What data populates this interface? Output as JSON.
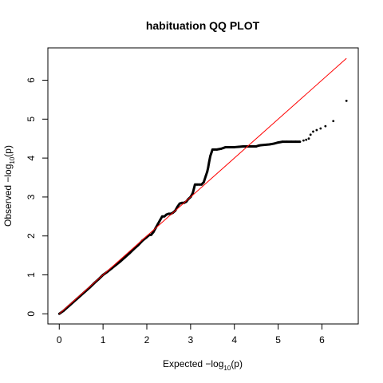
{
  "chart_data": {
    "type": "scatter",
    "title": "habituation QQ PLOT",
    "xlabel": {
      "prefix": "Expected  −log",
      "sub": "10",
      "suffix": "(p)"
    },
    "ylabel": {
      "prefix": "Observed  −log",
      "sub": "10",
      "suffix": "(p)"
    },
    "xlim": [
      -0.26,
      6.83
    ],
    "ylim": [
      -0.26,
      6.83
    ],
    "x_ticks": [
      0,
      1,
      2,
      3,
      4,
      5,
      6
    ],
    "y_ticks": [
      0,
      1,
      2,
      3,
      4,
      5,
      6
    ],
    "reference_line": {
      "from": [
        0,
        0
      ],
      "to": [
        6.56,
        6.56
      ],
      "color": "#ff0000"
    },
    "point_color": "#000000",
    "series": [
      {
        "values": [
          [
            0.0,
            0.0
          ],
          [
            0.1,
            0.08
          ],
          [
            0.2,
            0.18
          ],
          [
            0.3,
            0.28
          ],
          [
            0.4,
            0.38
          ],
          [
            0.5,
            0.48
          ],
          [
            0.6,
            0.58
          ],
          [
            0.7,
            0.68
          ],
          [
            0.8,
            0.79
          ],
          [
            0.9,
            0.89
          ],
          [
            1.0,
            1.0
          ],
          [
            1.1,
            1.08
          ],
          [
            1.2,
            1.17
          ],
          [
            1.3,
            1.26
          ],
          [
            1.4,
            1.35
          ],
          [
            1.5,
            1.45
          ],
          [
            1.6,
            1.55
          ],
          [
            1.7,
            1.66
          ],
          [
            1.8,
            1.76
          ],
          [
            1.9,
            1.88
          ],
          [
            2.0,
            1.97
          ],
          [
            2.05,
            2.02
          ],
          [
            2.1,
            2.03
          ],
          [
            2.15,
            2.1
          ],
          [
            2.2,
            2.2
          ],
          [
            2.25,
            2.3
          ],
          [
            2.3,
            2.4
          ],
          [
            2.35,
            2.5
          ],
          [
            2.4,
            2.5
          ],
          [
            2.45,
            2.55
          ],
          [
            2.5,
            2.57
          ],
          [
            2.55,
            2.57
          ],
          [
            2.6,
            2.6
          ],
          [
            2.65,
            2.65
          ],
          [
            2.7,
            2.75
          ],
          [
            2.75,
            2.83
          ],
          [
            2.8,
            2.85
          ],
          [
            2.85,
            2.85
          ],
          [
            2.9,
            2.88
          ],
          [
            2.95,
            2.95
          ],
          [
            3.0,
            3.0
          ],
          [
            3.05,
            3.1
          ],
          [
            3.1,
            3.32
          ],
          [
            3.15,
            3.32
          ],
          [
            3.2,
            3.32
          ],
          [
            3.25,
            3.32
          ],
          [
            3.3,
            3.38
          ],
          [
            3.35,
            3.55
          ],
          [
            3.38,
            3.65
          ],
          [
            3.4,
            3.75
          ],
          [
            3.42,
            3.88
          ],
          [
            3.45,
            4.05
          ],
          [
            3.48,
            4.15
          ],
          [
            3.5,
            4.22
          ],
          [
            3.55,
            4.22
          ],
          [
            3.6,
            4.22
          ],
          [
            3.65,
            4.23
          ],
          [
            3.7,
            4.24
          ],
          [
            3.75,
            4.26
          ],
          [
            3.8,
            4.28
          ],
          [
            3.9,
            4.28
          ],
          [
            4.0,
            4.28
          ],
          [
            4.1,
            4.29
          ],
          [
            4.2,
            4.3
          ],
          [
            4.3,
            4.3
          ],
          [
            4.4,
            4.3
          ],
          [
            4.5,
            4.3
          ],
          [
            4.55,
            4.32
          ],
          [
            4.6,
            4.33
          ],
          [
            4.7,
            4.34
          ],
          [
            4.8,
            4.35
          ],
          [
            4.9,
            4.37
          ],
          [
            5.0,
            4.4
          ],
          [
            5.1,
            4.42
          ],
          [
            5.2,
            4.42
          ],
          [
            5.3,
            4.42
          ],
          [
            5.4,
            4.42
          ],
          [
            5.5,
            4.42
          ],
          [
            5.58,
            4.45
          ],
          [
            5.64,
            4.47
          ],
          [
            5.7,
            4.5
          ],
          [
            5.74,
            4.6
          ],
          [
            5.8,
            4.68
          ],
          [
            5.88,
            4.72
          ],
          [
            5.97,
            4.76
          ],
          [
            6.08,
            4.82
          ],
          [
            6.26,
            4.95
          ],
          [
            6.56,
            5.47
          ]
        ]
      }
    ]
  }
}
